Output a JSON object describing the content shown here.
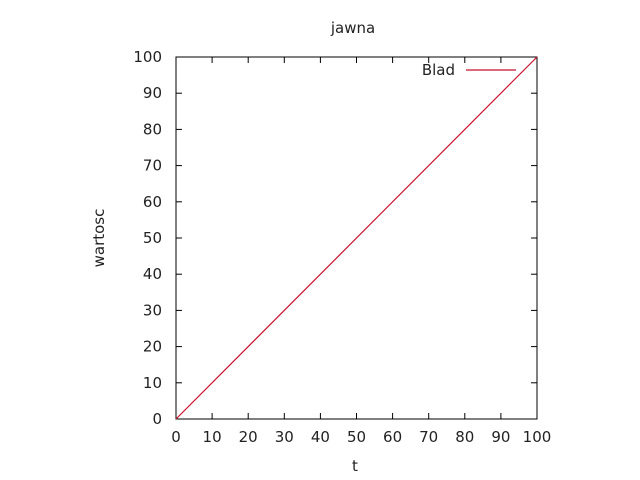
{
  "chart_data": {
    "type": "line",
    "title": "jawna",
    "xlabel": "t",
    "ylabel": "wartosc",
    "xlim": [
      0,
      100
    ],
    "ylim": [
      0,
      100
    ],
    "xticks": [
      0,
      10,
      20,
      30,
      40,
      50,
      60,
      70,
      80,
      90,
      100
    ],
    "yticks": [
      0,
      10,
      20,
      30,
      40,
      50,
      60,
      70,
      80,
      90,
      100
    ],
    "grid": false,
    "legend_position": "top-right",
    "series": [
      {
        "name": "Blad",
        "color": "#c8102e",
        "x": [
          0,
          100
        ],
        "y": [
          0,
          100
        ]
      }
    ]
  }
}
